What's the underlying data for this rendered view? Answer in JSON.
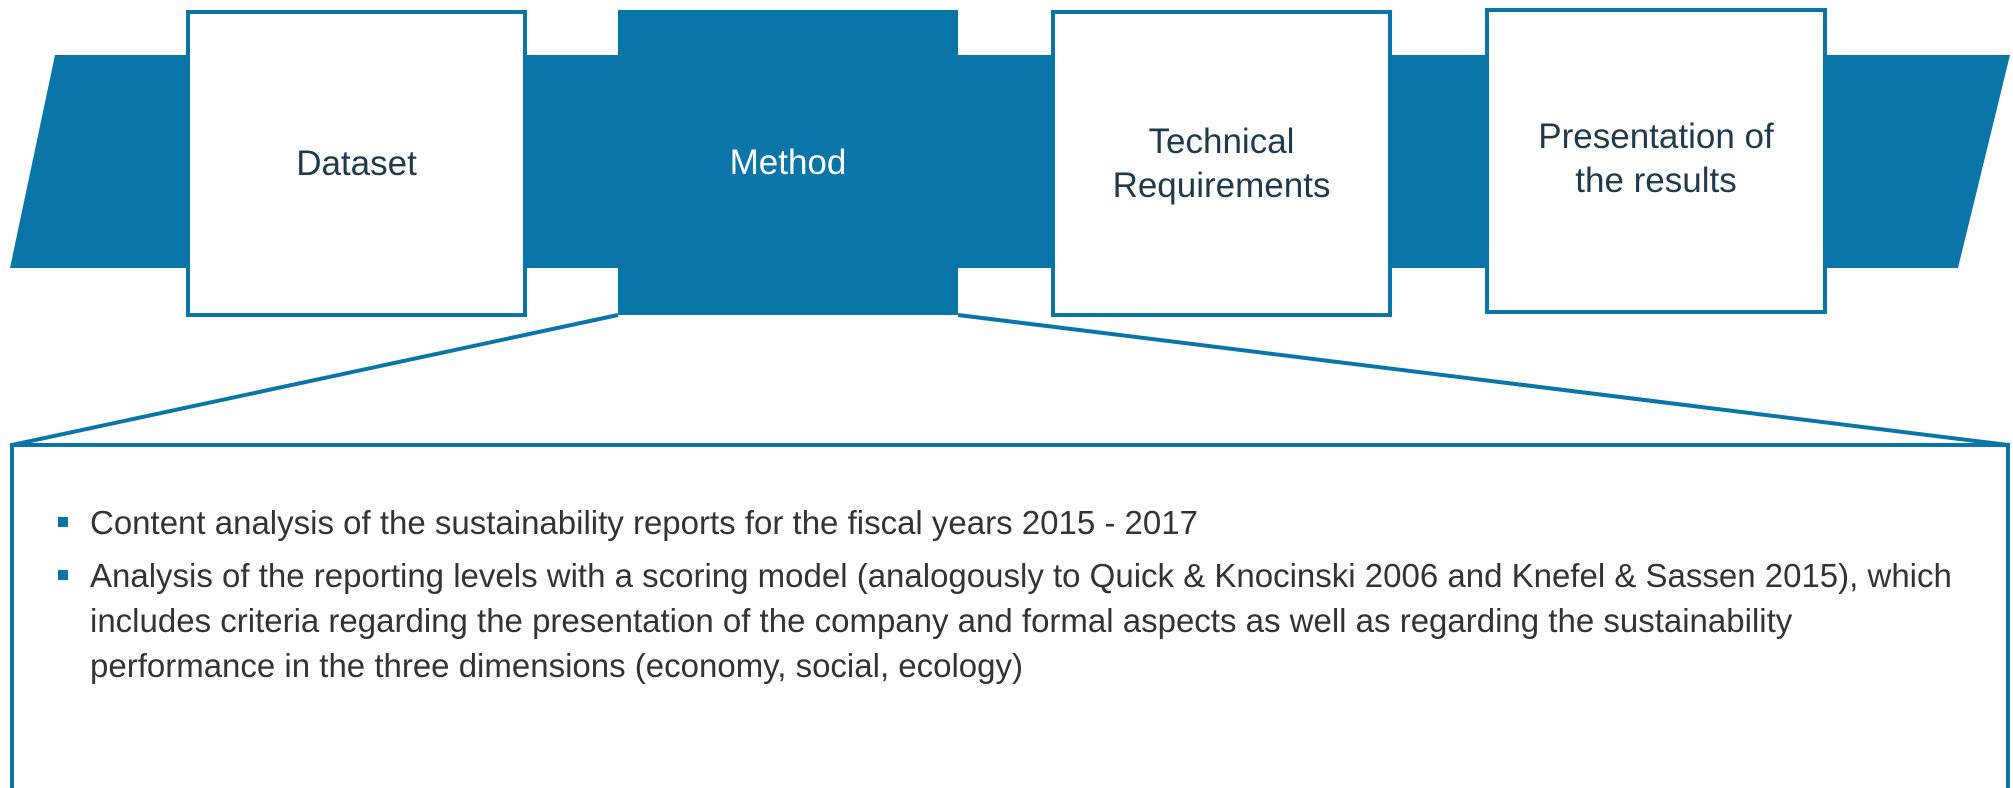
{
  "steps": [
    {
      "label": "Dataset"
    },
    {
      "label": "Method"
    },
    {
      "label": "Technical Requirements"
    },
    {
      "label": "Presentation of the results"
    }
  ],
  "details": {
    "bullets": [
      "Content analysis of the sustainability reports for the fiscal years 2015 - 2017",
      "Analysis of the reporting levels with a scoring model (analogously to Quick & Knocinski 2006 and Knefel & Sassen 2015), which includes criteria regarding the presentation of the company and formal aspects as well as regarding the sustainability performance in the three dimensions (economy, social, ecology)"
    ]
  }
}
